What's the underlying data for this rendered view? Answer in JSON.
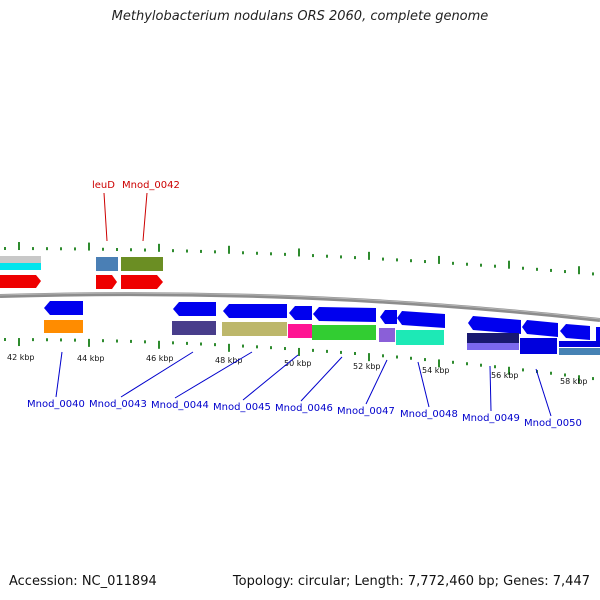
{
  "title": "Methylobacterium nodulans ORS 2060, complete genome",
  "footer": {
    "accession": "Accession: NC_011894",
    "topology": "Topology: circular; Length: 7,772,460 bp; Genes: 7,447"
  },
  "colors": {
    "backbone": "#8c8c8c",
    "ticks": "#2e8b2e",
    "top_label": "#cc0000",
    "bottom_label": "#0000cc"
  },
  "scale_labels": [
    "42 kbp",
    "44 kbp",
    "46 kbp",
    "48 kbp",
    "50 kbp",
    "52 kbp",
    "54 kbp",
    "56 kbp",
    "58 kbp"
  ],
  "top_labels": [
    "leuD",
    "Mnod_0042"
  ],
  "bottom_labels": [
    "Mnod_0040",
    "Mnod_0043",
    "Mnod_0044",
    "Mnod_0045",
    "Mnod_0046",
    "Mnod_0047",
    "Mnod_0048",
    "Mnod_0049",
    "Mnod_0050"
  ]
}
